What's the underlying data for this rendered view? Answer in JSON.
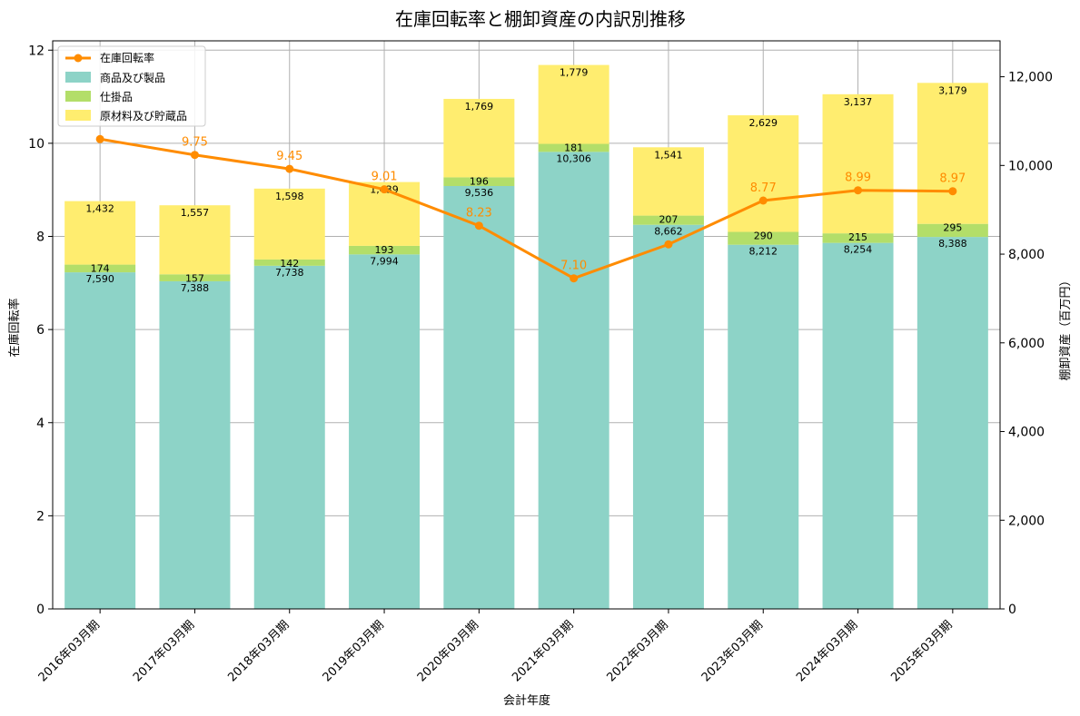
{
  "chart_data": {
    "type": "bar+line",
    "title": "在庫回転率と棚卸資産の内訳別推移",
    "xlabel": "会計年度",
    "ylabel_left": "在庫回転率",
    "ylabel_right": "棚卸資産（百万円）",
    "categories": [
      "2016年03月期",
      "2017年03月期",
      "2018年03月期",
      "2019年03月期",
      "2020年03月期",
      "2021年03月期",
      "2022年03月期",
      "2023年03月期",
      "2024年03月期",
      "2025年03月期"
    ],
    "bar_series": [
      {
        "name": "商品及び製品",
        "color": "#8dd3c7",
        "values": [
          7590,
          7388,
          7738,
          7994,
          9536,
          10306,
          8662,
          8212,
          8254,
          8388
        ]
      },
      {
        "name": "仕掛品",
        "color": "#b3de69",
        "values": [
          174,
          157,
          142,
          193,
          196,
          181,
          207,
          290,
          215,
          295
        ]
      },
      {
        "name": "原材料及び貯蔵品",
        "color": "#ffed6f",
        "values": [
          1432,
          1557,
          1598,
          1439,
          1769,
          1779,
          1541,
          2629,
          3137,
          3179
        ]
      }
    ],
    "line_series": {
      "name": "在庫回転率",
      "color": "#ff8c00",
      "values": [
        10.09,
        9.75,
        9.45,
        9.01,
        8.23,
        7.1,
        7.83,
        8.77,
        8.99,
        8.97
      ]
    },
    "line_labels": [
      "",
      "9.75",
      "9.45",
      "9.01",
      "8.23",
      "7.10",
      "",
      "8.77",
      "8.99",
      "8.97"
    ],
    "ylim_left": [
      0,
      12.2
    ],
    "ylim_right": [
      0,
      12810
    ],
    "yticks_left": [
      "0",
      "2",
      "4",
      "6",
      "8",
      "10",
      "12"
    ],
    "yticks_right": [
      "0",
      "2,000",
      "4,000",
      "6,000",
      "8,000",
      "10,000",
      "12,000"
    ],
    "grid": true,
    "legend_position": "top-left"
  }
}
